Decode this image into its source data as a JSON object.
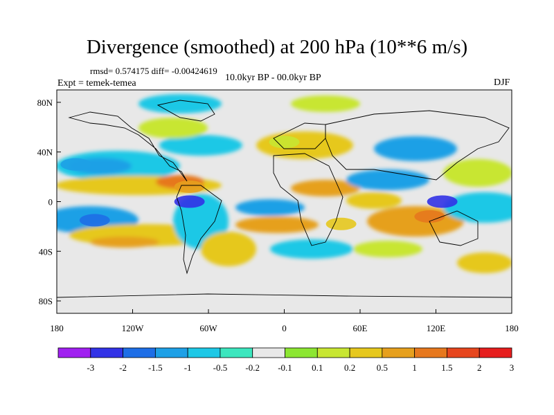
{
  "title": "Divergence (smoothed) at 200 hPa (10**6 m/s)",
  "stats": "rmsd= 0.574175 diff= -0.00424619",
  "period": "10.0kyr BP - 00.0kyr BP",
  "experiment": "Expt = temek-temea",
  "season": "DJF",
  "axes": {
    "x_ticks": [
      "180",
      "120W",
      "60W",
      "0",
      "60E",
      "120E",
      "180"
    ],
    "y_ticks": [
      "80N",
      "40N",
      "0",
      "40S",
      "80S"
    ]
  },
  "colorbar": {
    "colors": [
      "#a020f0",
      "#3232e6",
      "#1e6ee6",
      "#1ea0e6",
      "#1ec8e6",
      "#3ce6be",
      "#e8e8e8",
      "#8ce632",
      "#c8e632",
      "#e6c81e",
      "#e6a01e",
      "#e6781e",
      "#e6461e",
      "#e61e1e"
    ],
    "labels": [
      "-3",
      "-2",
      "-1.5",
      "-1",
      "-0.5",
      "-0.2",
      "-0.1",
      "0.1",
      "0.2",
      "0.5",
      "1",
      "1.5",
      "2",
      "3"
    ]
  },
  "map_features": [
    {
      "label": "positive",
      "color": "#e6a01e",
      "lon": -75,
      "lat": 12
    },
    {
      "label": "negative",
      "color": "#3232e6",
      "lon": -75,
      "lat": 0
    },
    {
      "label": "negative",
      "color": "#1e6ee6",
      "lon": -150,
      "lat": -15
    },
    {
      "label": "positive",
      "color": "#e6781e",
      "lon": 115,
      "lat": -12
    },
    {
      "label": "negative",
      "color": "#3232e6",
      "lon": 125,
      "lat": 0
    },
    {
      "label": "positive",
      "color": "#e6c81e",
      "lon": 45,
      "lat": -18
    },
    {
      "label": "negative",
      "color": "#1ea0e6",
      "lon": -165,
      "lat": 30
    },
    {
      "label": "positive",
      "color": "#c8e632",
      "lon": 0,
      "lat": 48
    }
  ]
}
